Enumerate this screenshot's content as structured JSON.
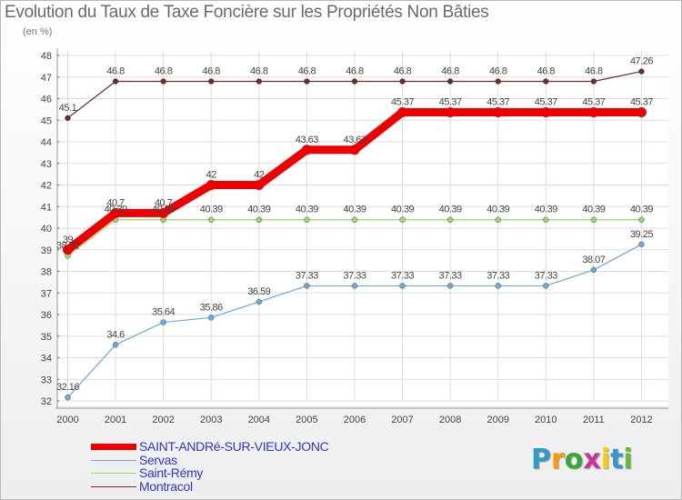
{
  "chart_data": {
    "type": "line",
    "title": "Evolution du Taux de Taxe Foncière sur les Propriétés Non Bâties",
    "ylabel": "(en %)",
    "xlabel": "",
    "x": [
      "2000",
      "2001",
      "2002",
      "2003",
      "2004",
      "2005",
      "2006",
      "2007",
      "2008",
      "2009",
      "2010",
      "2011",
      "2012"
    ],
    "yticks": [
      "32",
      "33",
      "34",
      "35",
      "36",
      "37",
      "38",
      "39",
      "40",
      "41",
      "42",
      "43",
      "44",
      "45",
      "46",
      "47",
      "48"
    ],
    "ylim": [
      32,
      48
    ],
    "grid": true,
    "legend_position": "bottom-left",
    "series": [
      {
        "name": "Montracol",
        "color": "#6b2b2b",
        "values": [
          45.1,
          46.8,
          46.8,
          46.8,
          46.8,
          46.8,
          46.8,
          46.8,
          46.8,
          46.8,
          46.8,
          46.8,
          47.26
        ],
        "labels": [
          "45.1",
          "46.8",
          "46.8",
          "46.8",
          "46.8",
          "46.8",
          "46.8",
          "46.8",
          "46.8",
          "46.8",
          "46.8",
          "46.8",
          "47.26"
        ]
      },
      {
        "name": "Saint-Rémy",
        "color": "#99d966",
        "values": [
          38.72,
          40.39,
          40.39,
          40.39,
          40.39,
          40.39,
          40.39,
          40.39,
          40.39,
          40.39,
          40.39,
          40.39,
          40.39
        ],
        "labels": [
          "38.72",
          "40.39",
          "40.39",
          "40.39",
          "40.39",
          "40.39",
          "40.39",
          "40.39",
          "40.39",
          "40.39",
          "40.39",
          "40.39",
          "40.39"
        ]
      },
      {
        "name": "Servas",
        "color": "#6fa8d8",
        "values": [
          32.16,
          34.6,
          35.64,
          35.86,
          36.59,
          37.33,
          37.33,
          37.33,
          37.33,
          37.33,
          37.33,
          38.07,
          39.25
        ],
        "labels": [
          "32.16",
          "34.6",
          "35.64",
          "35.86",
          "36.59",
          "37.33",
          "37.33",
          "37.33",
          "37.33",
          "37.33",
          "37.33",
          "38.07",
          "39.25"
        ]
      },
      {
        "name": "SAINT-ANDRé-SUR-VIEUX-JONC",
        "color": "#ee0000",
        "values": [
          39,
          40.7,
          40.7,
          42,
          42,
          43.63,
          43.63,
          45.37,
          45.37,
          45.37,
          45.37,
          45.37,
          45.37
        ],
        "labels": [
          "39",
          "40.7",
          "40.7",
          "42",
          "42",
          "43.63",
          "43.63",
          "45.37",
          "45.37",
          "45.37",
          "45.37",
          "45.37",
          "45.37"
        ]
      }
    ],
    "legend": [
      "SAINT-ANDRé-SUR-VIEUX-JONC",
      "Servas",
      "Saint-Rémy",
      "Montracol"
    ]
  },
  "logo": {
    "letters": [
      "P",
      "r",
      "o",
      "x",
      "i",
      "t",
      "i"
    ],
    "colors": [
      "#3399cc",
      "#ff9900",
      "#33aa33",
      "#cc3399",
      "#ffcc00",
      "#3399cc",
      "#66bb33"
    ]
  }
}
